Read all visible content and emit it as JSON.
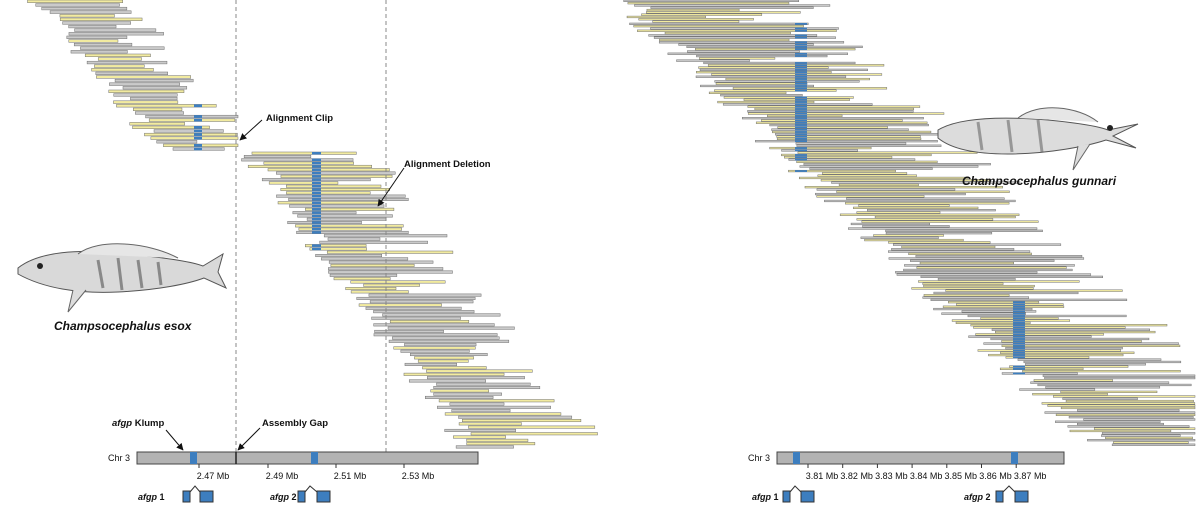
{
  "left_panel": {
    "species": "Champsocephalus esox",
    "annotations": {
      "clip": "Alignment Clip",
      "deletion": "Alignment Deletion",
      "gap": "Assembly Gap",
      "klump": {
        "italic": "afgp",
        "text": "Klump"
      }
    },
    "chromosome": "Chr 3",
    "ticks": [
      "2.47 Mb",
      "2.49 Mb",
      "2.51 Mb",
      "2.53 Mb"
    ],
    "genes": [
      {
        "italic": "afgp",
        "number": "1"
      },
      {
        "italic": "afgp",
        "number": "2"
      }
    ]
  },
  "right_panel": {
    "species": "Champsocephalus gunnari",
    "chromosome": "Chr 3",
    "ticks": [
      "3.81 Mb",
      "3.82 Mb",
      "3.83 Mb",
      "3.84 Mb",
      "3.85 Mb",
      "3.86 Mb",
      "3.87 Mb"
    ],
    "genes": [
      {
        "italic": "afgp",
        "number": "1"
      },
      {
        "italic": "afgp",
        "number": "2"
      }
    ]
  }
}
